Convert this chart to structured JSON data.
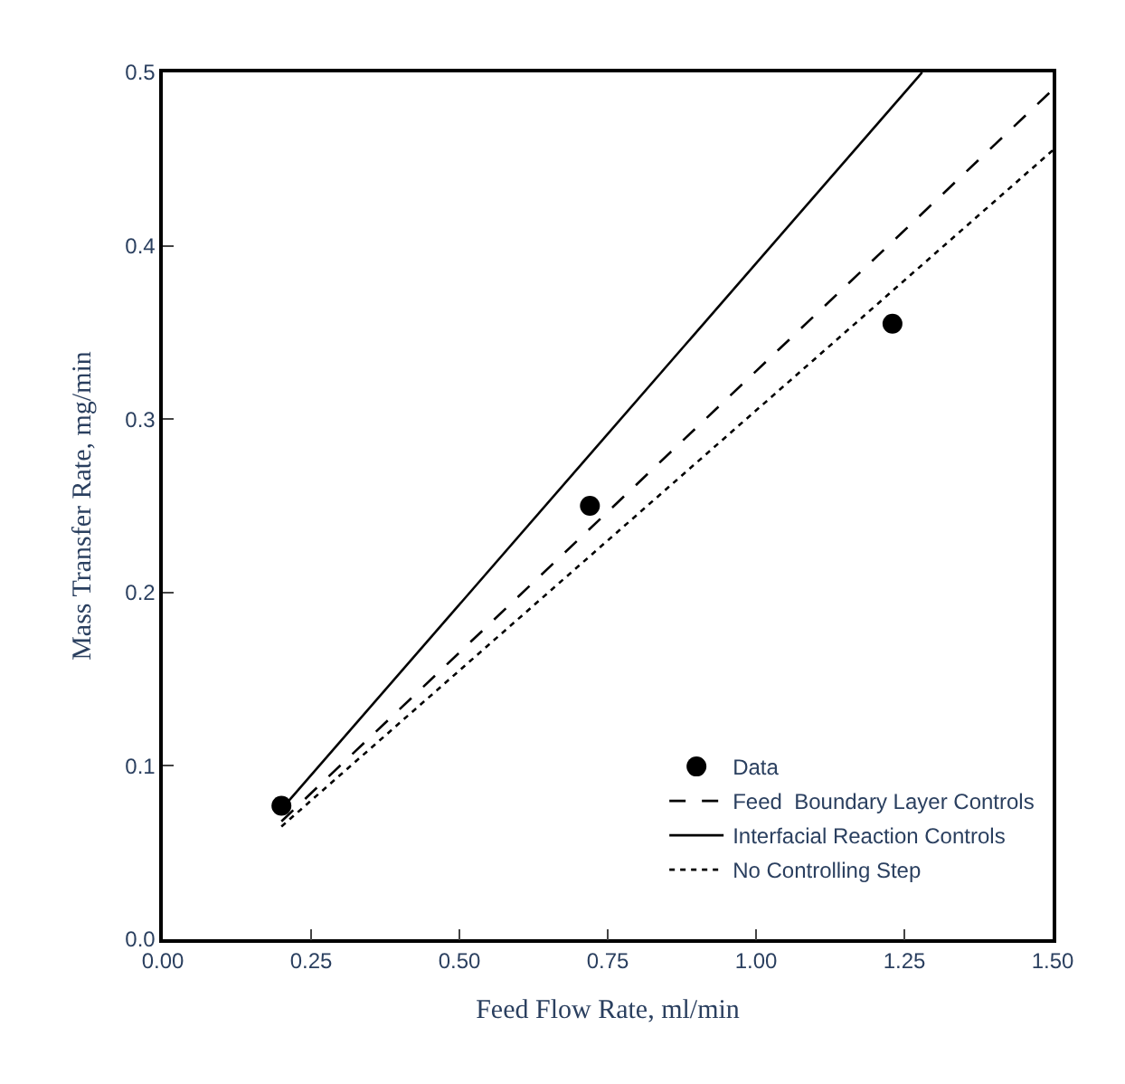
{
  "chart_data": {
    "type": "scatter",
    "xlabel": "Feed Flow Rate, ml/min",
    "ylabel": "Mass Transfer Rate, mg/min",
    "xlim": [
      0,
      1.5
    ],
    "ylim": [
      0,
      0.5
    ],
    "xticks": [
      {
        "value": 0,
        "label": "0.00"
      },
      {
        "value": 0.25,
        "label": "0.25"
      },
      {
        "value": 0.5,
        "label": "0.50"
      },
      {
        "value": 0.75,
        "label": "0.75"
      },
      {
        "value": 1,
        "label": "1.00"
      },
      {
        "value": 1.25,
        "label": "1.25"
      },
      {
        "value": 1.5,
        "label": "1.50"
      }
    ],
    "yticks": [
      {
        "value": 0,
        "label": "0.0"
      },
      {
        "value": 0.1,
        "label": "0.1"
      },
      {
        "value": 0.2,
        "label": "0.2"
      },
      {
        "value": 0.3,
        "label": "0.3"
      },
      {
        "value": 0.4,
        "label": "0.4"
      },
      {
        "value": 0.5,
        "label": "0.5"
      }
    ],
    "legend": "bottom right",
    "series": [
      {
        "name": "Data",
        "marker": "circle",
        "color": "#000000",
        "x": [
          0.2,
          0.72,
          1.23
        ],
        "values": [
          0.077,
          0.25,
          0.355
        ]
      },
      {
        "name": "Feed  Boundary Layer Controls",
        "type": "line",
        "line_style": "dashed",
        "color": "#000000",
        "x": [
          0.2,
          1.5
        ],
        "values": [
          0.068,
          0.49
        ]
      },
      {
        "name": "Interfacial Reaction Controls",
        "type": "line",
        "line_style": "solid",
        "color": "#000000",
        "x": [
          0.2,
          1.28
        ],
        "values": [
          0.075,
          0.5
        ]
      },
      {
        "name": "No Controlling Step",
        "type": "line",
        "line_style": "dotted",
        "color": "#000000",
        "x": [
          0.2,
          1.5
        ],
        "values": [
          0.065,
          0.455
        ]
      }
    ]
  }
}
